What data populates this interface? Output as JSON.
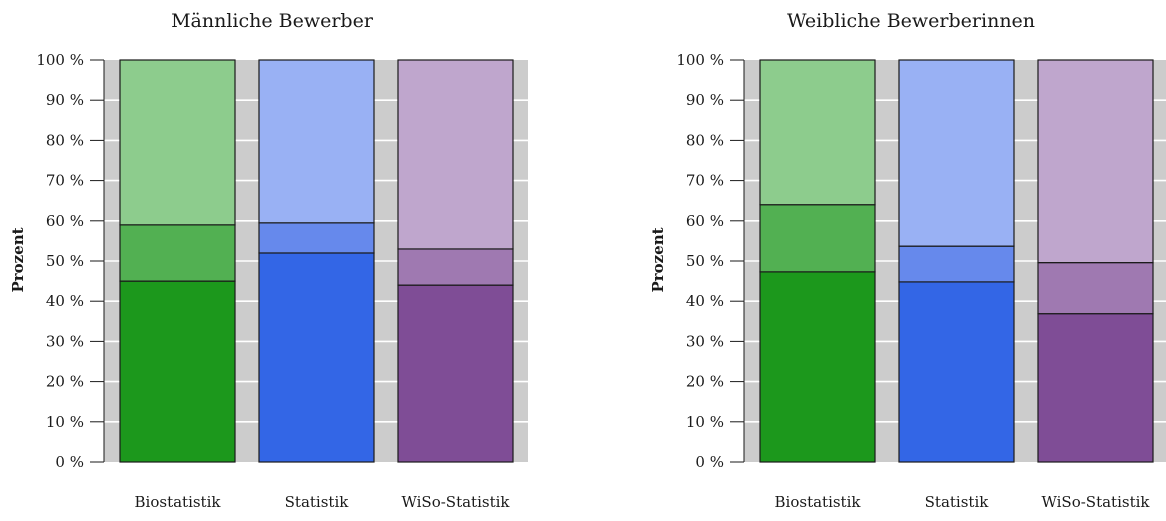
{
  "chart_data": [
    {
      "type": "bar",
      "stacked": true,
      "title": "Männliche Bewerber",
      "ylabel": "Prozent",
      "categories": [
        "Biostatistik",
        "Statistik",
        "WiSo-Statistik"
      ],
      "ylim": [
        0,
        100
      ],
      "yticks": [
        "0 %",
        "10 %",
        "20 %",
        "30 %",
        "40 %",
        "50 %",
        "60 %",
        "70 %",
        "80 %",
        "90 %",
        "100 %"
      ],
      "grid": true,
      "segments": [
        [
          45,
          14,
          41
        ],
        [
          52,
          7.5,
          40.5
        ],
        [
          44,
          9,
          47
        ]
      ]
    },
    {
      "type": "bar",
      "stacked": true,
      "title": "Weibliche Bewerberinnen",
      "ylabel": "Prozent",
      "categories": [
        "Biostatistik",
        "Statistik",
        "WiSo-Statistik"
      ],
      "ylim": [
        0,
        100
      ],
      "yticks": [
        "0 %",
        "10 %",
        "20 %",
        "30 %",
        "40 %",
        "50 %",
        "60 %",
        "70 %",
        "80 %",
        "90 %",
        "100 %"
      ],
      "grid": true,
      "segments": [
        [
          47.3,
          16.7,
          36
        ],
        [
          44.8,
          8.9,
          46.3
        ],
        [
          36.9,
          12.7,
          50.4
        ]
      ]
    }
  ],
  "colors": {
    "background": "#cccccc",
    "grid": "#ffffff",
    "categories": [
      [
        "#1c981c",
        "#52b052",
        "#8dcc8d"
      ],
      [
        "#3366e6",
        "#6689ec",
        "#99b1f4"
      ],
      [
        "#7f4d96",
        "#9f79b1",
        "#bfa6cd"
      ]
    ]
  }
}
